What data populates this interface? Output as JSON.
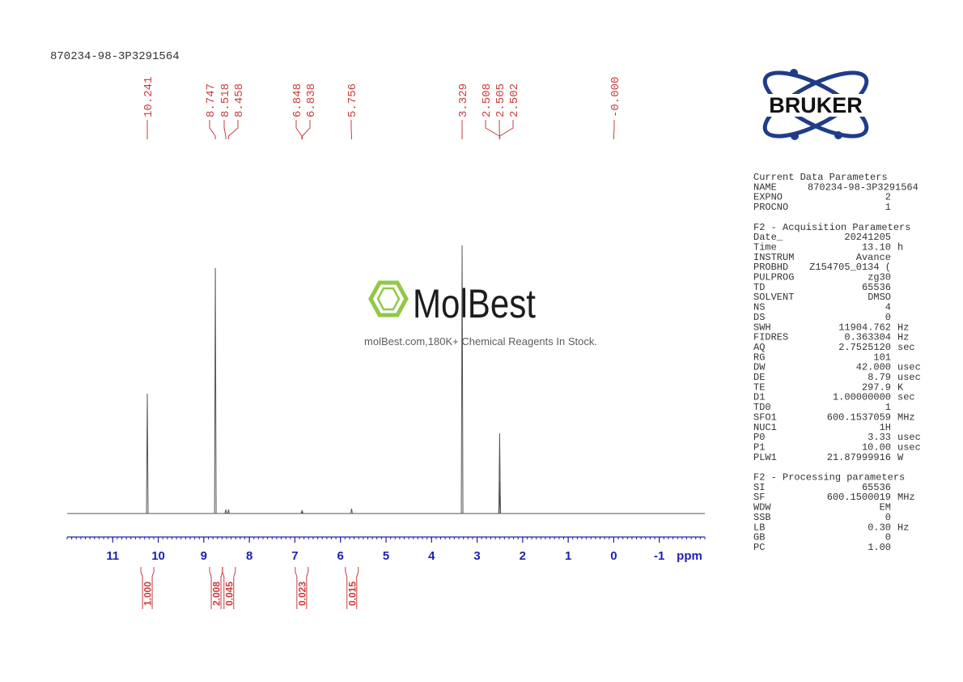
{
  "chart_data": {
    "type": "nmr",
    "title": "870234-98-3P3291564",
    "x_label": "ppm",
    "xlim": [
      12,
      -2
    ],
    "xticks": [
      11,
      10,
      9,
      8,
      7,
      6,
      5,
      4,
      3,
      2,
      1,
      0,
      -1
    ],
    "peaks": {
      "x": [
        10.241,
        8.747,
        8.518,
        8.458,
        6.848,
        6.838,
        5.756,
        3.329,
        2.508,
        2.505,
        2.502,
        0
      ],
      "x_labels": [
        "10.241",
        "8.747",
        "8.518",
        "8.458",
        "6.848",
        "6.838",
        "5.756",
        "3.329",
        "2.508",
        "2.505",
        "2.502",
        "-0.000"
      ],
      "values": [
        148,
        303,
        5,
        5,
        3,
        3,
        6,
        331,
        40,
        99,
        40,
        0
      ]
    },
    "integrals": {
      "x": [
        10.24,
        8.73,
        8.45,
        6.85,
        5.75
      ],
      "values": [
        1,
        2.008,
        0.045,
        0.023,
        0.015
      ],
      "value_labels": [
        "1.000",
        "2.008",
        "0.045",
        "0.023",
        "0.015"
      ]
    },
    "color": "#555555",
    "label_color": "#c83c3c",
    "axis_color": "#1f1fb4"
  },
  "logo": {
    "text": "BRUKER"
  },
  "watermark": {
    "brand": "MolBest",
    "tagline": "molBest.com,180K+ Chemical Reagents In Stock."
  },
  "parameters": [
    {
      "heading": "Current Data Parameters",
      "rows": [
        [
          "NAME",
          "870234-98-3P3291564"
        ],
        [
          "EXPNO",
          "2"
        ],
        [
          "PROCNO",
          "1"
        ]
      ]
    },
    {
      "heading": "F2 - Acquisition Parameters",
      "rows": [
        [
          "Date_",
          "20241205"
        ],
        [
          "Time",
          "13.10",
          "h"
        ],
        [
          "INSTRUM",
          "Avance"
        ],
        [
          "PROBHD",
          "Z154705_0134 ("
        ],
        [
          "PULPROG",
          "zg30"
        ],
        [
          "TD",
          "65536"
        ],
        [
          "SOLVENT",
          "DMSO"
        ],
        [
          "NS",
          "4"
        ],
        [
          "DS",
          "0"
        ],
        [
          "SWH",
          "11904.762",
          "Hz"
        ],
        [
          "FIDRES",
          "0.363304",
          "Hz"
        ],
        [
          "AQ",
          "2.7525120",
          "sec"
        ],
        [
          "RG",
          "101"
        ],
        [
          "DW",
          "42.000",
          "usec"
        ],
        [
          "DE",
          "8.79",
          "usec"
        ],
        [
          "TE",
          "297.9",
          "K"
        ],
        [
          "D1",
          "1.00000000",
          "sec"
        ],
        [
          "TD0",
          "1"
        ],
        [
          "SFO1",
          "600.1537059",
          "MHz"
        ],
        [
          "NUC1",
          "1H"
        ],
        [
          "P0",
          "3.33",
          "usec"
        ],
        [
          "P1",
          "10.00",
          "usec"
        ],
        [
          "PLW1",
          "21.87999916",
          "W"
        ]
      ]
    },
    {
      "heading": "F2 - Processing parameters",
      "rows": [
        [
          "SI",
          "65536"
        ],
        [
          "SF",
          "600.1500019",
          "MHz"
        ],
        [
          "WDW",
          "EM"
        ],
        [
          "SSB",
          "0"
        ],
        [
          "LB",
          "0.30",
          "Hz"
        ],
        [
          "GB",
          "0"
        ],
        [
          "PC",
          "1.00"
        ]
      ]
    }
  ]
}
